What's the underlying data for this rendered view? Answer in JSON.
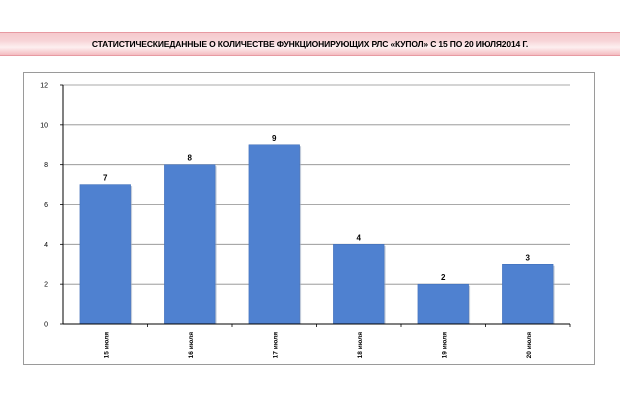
{
  "header": {
    "title": "СТАТИСТИЧЕСКИЕДАННЫЕ О КОЛИЧЕСТВЕ ФУНКЦИОНИРУЮЩИХ РЛС «КУПОЛ» С 15 ПО 20 ИЮЛЯ2014 Г."
  },
  "chart_data": {
    "type": "bar",
    "categories": [
      "15 июля",
      "16 июля",
      "17 июля",
      "18 июля",
      "19 июля",
      "20 июля"
    ],
    "values": [
      7,
      8,
      9,
      4,
      2,
      3
    ],
    "ylim": [
      0,
      12
    ],
    "yticks": [
      0,
      2,
      4,
      6,
      8,
      10,
      12
    ],
    "grid": true,
    "bar_color": "#4f81d0",
    "legend": "none"
  }
}
